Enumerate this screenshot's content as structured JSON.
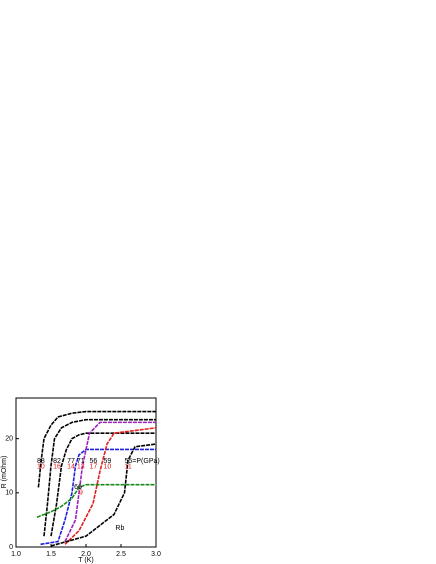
{
  "chart_data": {
    "type": "line",
    "x_label": "T (K)",
    "y_label": "R (mOhm)",
    "xlim": [
      1.0,
      3.0
    ],
    "ylim": [
      0,
      27.5
    ],
    "xticks": [
      {
        "value": 1.0,
        "label": "1.0"
      },
      {
        "value": 1.5,
        "label": "1.5"
      },
      {
        "value": 2.0,
        "label": "2.0"
      },
      {
        "value": 2.5,
        "label": "2.5"
      },
      {
        "value": 3.0,
        "label": "3.0"
      }
    ],
    "yticks": [
      0,
      10,
      20
    ],
    "series": [
      {
        "color": "#000000",
        "x": [
          1.32,
          1.36,
          1.4,
          1.5,
          1.6,
          1.8,
          2.0,
          3.0
        ],
        "values": [
          11,
          16,
          20,
          22.5,
          24,
          24.7,
          25,
          25
        ]
      },
      {
        "color": "#000000",
        "x": [
          1.4,
          1.45,
          1.5,
          1.55,
          1.65,
          1.8,
          2.0,
          3.0
        ],
        "values": [
          2,
          8,
          15,
          20,
          22,
          23,
          23.5,
          23.5
        ]
      },
      {
        "color": "#000000",
        "x": [
          1.5,
          1.58,
          1.65,
          1.72,
          1.8,
          1.9,
          2.0,
          3.0
        ],
        "values": [
          2,
          8,
          15,
          18,
          20,
          20.7,
          21,
          21
        ]
      },
      {
        "color": "#1f1fe0",
        "x": [
          1.35,
          1.6,
          1.7,
          1.8,
          1.85,
          1.9,
          2.0,
          3.0
        ],
        "values": [
          0.5,
          1,
          5,
          10,
          15,
          17,
          18,
          18
        ]
      },
      {
        "color": "#a020c0",
        "x": [
          1.7,
          1.85,
          1.95,
          2.05,
          2.2,
          3.0
        ],
        "values": [
          1,
          5,
          15,
          21,
          23,
          23
        ]
      },
      {
        "color": "#e02020",
        "x": [
          1.7,
          1.9,
          2.1,
          2.2,
          2.3,
          2.4,
          3.0
        ],
        "values": [
          0.5,
          3,
          8,
          14,
          19,
          21,
          22
        ]
      },
      {
        "color": "#000000",
        "x": [
          1.5,
          2.0,
          2.2,
          2.4,
          2.55,
          2.6,
          2.7,
          3.0
        ],
        "values": [
          0.2,
          2,
          4,
          6,
          10,
          16,
          18.5,
          19
        ]
      },
      {
        "color": "#1a8a1a",
        "x": [
          1.3,
          1.5,
          1.65,
          1.8,
          1.9,
          2.0,
          3.0
        ],
        "values": [
          5.5,
          6.5,
          7.5,
          9,
          11,
          11.5,
          11.5
        ]
      }
    ],
    "annotations": [
      {
        "text": "88",
        "x": 1.3,
        "y": 15.8,
        "color": "#000000"
      },
      {
        "text": "10",
        "x": 1.3,
        "y": 14.8,
        "color": "#e02020"
      },
      {
        "text": "82",
        "x": 1.53,
        "y": 15.8,
        "color": "#000000"
      },
      {
        "text": "16",
        "x": 1.53,
        "y": 14.8,
        "color": "#e02020"
      },
      {
        "text": "77",
        "x": 1.73,
        "y": 15.8,
        "color": "#000000"
      },
      {
        "text": "14",
        "x": 1.73,
        "y": 14.8,
        "color": "#e02020"
      },
      {
        "text": "71",
        "x": 1.87,
        "y": 15.8,
        "color": "#000000"
      },
      {
        "text": "13",
        "x": 1.87,
        "y": 14.8,
        "color": "#e02020"
      },
      {
        "text": "56",
        "x": 2.05,
        "y": 15.8,
        "color": "#000000"
      },
      {
        "text": "17",
        "x": 2.05,
        "y": 14.8,
        "color": "#e02020"
      },
      {
        "text": "59",
        "x": 2.25,
        "y": 15.8,
        "color": "#000000"
      },
      {
        "text": "10",
        "x": 2.25,
        "y": 14.8,
        "color": "#e02020"
      },
      {
        "text": "55=P(GPa)",
        "x": 2.55,
        "y": 15.8,
        "color": "#000000"
      },
      {
        "text": "11",
        "x": 2.55,
        "y": 14.8,
        "color": "#e02020"
      },
      {
        "text": "66",
        "x": 1.83,
        "y": 11,
        "color": "#000000"
      },
      {
        "text": "9",
        "x": 1.9,
        "y": 10,
        "color": "#e02020"
      },
      {
        "text": "Rb",
        "x": 2.42,
        "y": 3.5,
        "color": "#000000"
      }
    ]
  }
}
